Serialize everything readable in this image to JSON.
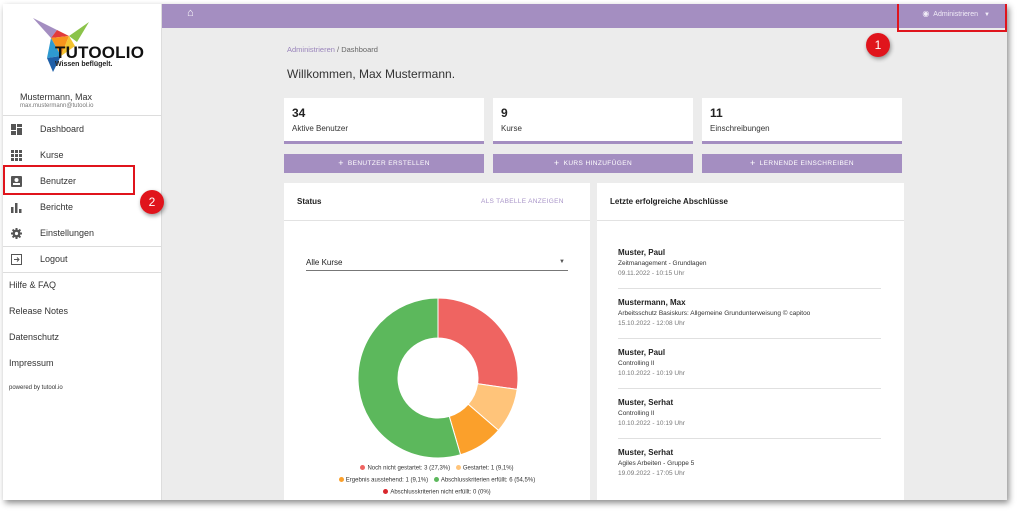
{
  "sidebar": {
    "logo_text": "TUTOOLIO",
    "logo_tagline": "Wissen beflügelt.",
    "user_name": "Mustermann, Max",
    "user_email": "max.mustermann@tutool.io",
    "nav": [
      {
        "label": "Dashboard",
        "icon": "dashboard-icon"
      },
      {
        "label": "Kurse",
        "icon": "grid-icon"
      },
      {
        "label": "Benutzer",
        "icon": "user-card-icon"
      },
      {
        "label": "Berichte",
        "icon": "bar-chart-icon"
      },
      {
        "label": "Einstellungen",
        "icon": "gear-icon"
      },
      {
        "label": "Logout",
        "icon": "logout-icon"
      }
    ],
    "links": [
      "Hilfe & FAQ",
      "Release Notes",
      "Datenschutz",
      "Impressum"
    ],
    "powered_by": "powered by tutool.io"
  },
  "topbar": {
    "home_icon": "home-icon",
    "admin_label": "Administrieren",
    "admin_icon": "eye-icon"
  },
  "breadcrumb": {
    "root": "Administrieren",
    "separator": "/",
    "current": "Dashboard"
  },
  "welcome": "Willkommen, Max Mustermann.",
  "stats": [
    {
      "value": "34",
      "label": "Aktive Benutzer"
    },
    {
      "value": "9",
      "label": "Kurse"
    },
    {
      "value": "11",
      "label": "Einschreibungen"
    }
  ],
  "actions": [
    {
      "label": "BENUTZER ERSTELLEN"
    },
    {
      "label": "KURS HINZUFÜGEN"
    },
    {
      "label": "LERNENDE EINSCHREIBEN"
    }
  ],
  "status_card": {
    "title": "Status",
    "table_link": "ALS TABELLE ANZEIGEN",
    "select_value": "Alle Kurse"
  },
  "chart_data": {
    "type": "pie",
    "donut": true,
    "series": [
      {
        "name": "Noch nicht gestartet",
        "value": 3,
        "label": "Noch nicht gestartet: 3 (27,3%)",
        "color": "#ef6461"
      },
      {
        "name": "Gestartet",
        "value": 1,
        "label": "Gestartet: 1 (9,1%)",
        "color": "#ffc47a"
      },
      {
        "name": "Ergebnis ausstehend",
        "value": 1,
        "label": "Ergebnis ausstehend: 1 (9,1%)",
        "color": "#fba02b"
      },
      {
        "name": "Abschlusskriterien erfüllt",
        "value": 6,
        "label": "Abschlusskriterien erfüllt: 6 (54,5%)",
        "color": "#5cb85c"
      },
      {
        "name": "Abschlusskriterien nicht erfüllt",
        "value": 0,
        "label": "Abschlusskriterien nicht erfüllt: 0 (0%)",
        "color": "#d9262c"
      }
    ],
    "legend_position": "bottom"
  },
  "completions": {
    "title": "Letzte erfolgreiche Abschlüsse",
    "items": [
      {
        "name": "Muster, Paul",
        "course": "Zeitmanagement - Grundlagen",
        "date": "09.11.2022 - 10:15 Uhr"
      },
      {
        "name": "Mustermann, Max",
        "course": "Arbeitsschutz Basiskurs: Allgemeine Grundunterweisung © capitoo",
        "date": "15.10.2022 - 12:08 Uhr"
      },
      {
        "name": "Muster, Paul",
        "course": "Controlling II",
        "date": "10.10.2022 - 10:19 Uhr"
      },
      {
        "name": "Muster, Serhat",
        "course": "Controlling II",
        "date": "10.10.2022 - 10:19 Uhr"
      },
      {
        "name": "Muster, Serhat",
        "course": "Agiles Arbeiten - Gruppe 5",
        "date": "19.09.2022 - 17:05 Uhr"
      }
    ]
  },
  "annotations": {
    "badge_1": "1",
    "badge_2": "2"
  }
}
